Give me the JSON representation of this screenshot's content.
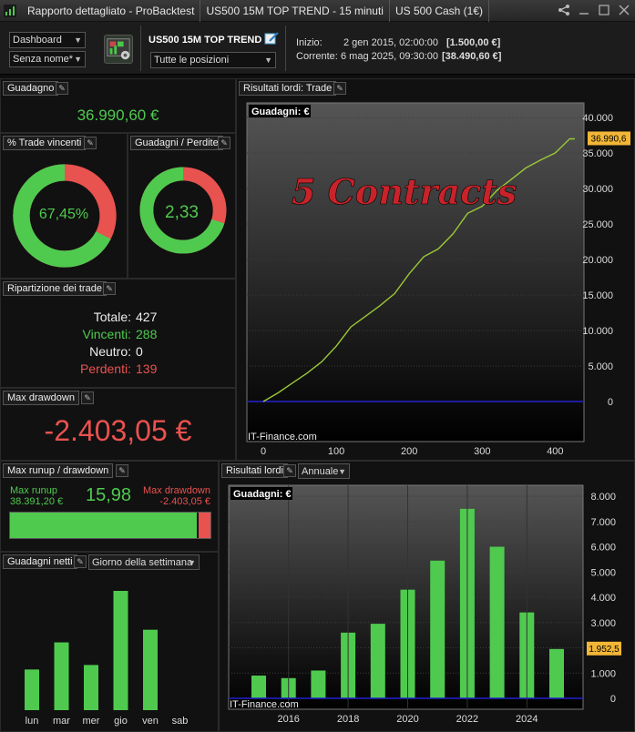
{
  "titlebar": {
    "tabs": [
      "Rapporto dettagliato - ProBacktest",
      "US500 15M TOP TREND - 15 minuti",
      "US 500 Cash (1€)"
    ]
  },
  "header": {
    "dashboard_select": "Dashboard",
    "name_select": "Senza nome*",
    "strategy_title": "US500 15M TOP TREND",
    "positions_select": "Tutte le posizioni",
    "start_label": "Inizio:",
    "start_date": "2 gen 2015, 02:00:00",
    "start_value": "[1.500,00 €]",
    "current_label": "Corrente:",
    "current_date": "6 mag 2025, 09:30:00",
    "current_value": "[38.490,60 €]"
  },
  "gain_panel": {
    "title": "Guadagno",
    "value": "36.990,60 €"
  },
  "win_panel": {
    "title": "% Trade vincenti",
    "value": "67,45%",
    "fraction": 0.6745
  },
  "gl_panel": {
    "title": "Guadagni / Perdite",
    "value": "2,33",
    "fraction": 0.7
  },
  "breakdown": {
    "title": "Ripartizione dei trade",
    "total_label": "Totale:",
    "total": "427",
    "win_label": "Vincenti:",
    "win": "288",
    "neutral_label": "Neutro:",
    "neutral": "0",
    "loss_label": "Perdenti:",
    "loss": "139"
  },
  "drawdown_panel": {
    "title": "Max drawdown",
    "value": "-2.403,05 €"
  },
  "runup_panel": {
    "title": "Max runup / drawdown",
    "runup_label": "Max runup",
    "runup_value": "38.391,20 €",
    "ratio": "15,98",
    "dd_label": "Max drawdown",
    "dd_value": "-2.403,05 €",
    "runup_fraction": 0.94
  },
  "weekday_panel": {
    "title": "Guadagni netti",
    "select": "Giorno della settimana"
  },
  "equity_panel": {
    "title": "Risultati lordi: Trade",
    "chart_label": "Guadagni: €",
    "annotation": "5 Contracts",
    "watermark": "IT-Finance.com",
    "last_value": "36.990,6"
  },
  "annual_panel": {
    "title": "Risultati lordi",
    "select": "Annuale",
    "chart_label": "Guadagni: €",
    "watermark": "IT-Finance.com",
    "last_value": "1.952,5"
  },
  "colors": {
    "green": "#4fca4f",
    "red": "#e8524f",
    "zero_line": "#2222cc"
  },
  "chart_data": [
    {
      "type": "line",
      "title": "Risultati lordi: Trade",
      "ylabel": "Guadagni: €",
      "xlim": [
        0,
        427
      ],
      "ylim": [
        -1000,
        41000
      ],
      "xticks": [
        0,
        100,
        200,
        300,
        400
      ],
      "yticks": [
        0,
        5000,
        10000,
        15000,
        20000,
        25000,
        30000,
        35000,
        40000
      ],
      "ytick_labels": [
        "0",
        "5.000",
        "10.000",
        "15.000",
        "20.000",
        "25.000",
        "30.000",
        "35.000",
        "40.000"
      ],
      "x": [
        0,
        20,
        40,
        60,
        80,
        100,
        120,
        140,
        160,
        180,
        200,
        220,
        240,
        260,
        280,
        300,
        320,
        340,
        360,
        380,
        400,
        420,
        427
      ],
      "y": [
        0,
        1200,
        2600,
        4000,
        5600,
        7800,
        10500,
        12000,
        13500,
        15200,
        18000,
        20400,
        21500,
        23600,
        26500,
        27500,
        29700,
        31300,
        32900,
        34000,
        35000,
        37000,
        36990.6
      ],
      "grid": true
    },
    {
      "type": "bar",
      "title": "Risultati lordi",
      "ylabel": "Guadagni: €",
      "categories": [
        "2015",
        "2016",
        "2017",
        "2018",
        "2019",
        "2020",
        "2021",
        "2022",
        "2023",
        "2024",
        "2025"
      ],
      "values": [
        900,
        800,
        1100,
        2600,
        2950,
        4300,
        5450,
        7500,
        6000,
        3400,
        1952.5
      ],
      "xtick_labels": [
        "2016",
        "2018",
        "2020",
        "2022",
        "2024"
      ],
      "yticks": [
        0,
        1000,
        2000,
        3000,
        4000,
        5000,
        6000,
        7000,
        8000
      ],
      "ytick_labels": [
        "0",
        "1.000",
        "2.000",
        "3.000",
        "4.000",
        "5.000",
        "6.000",
        "7.000",
        "8.000"
      ],
      "ylim": [
        -300,
        8300
      ],
      "grid": true
    },
    {
      "type": "bar",
      "title": "Guadagni netti",
      "categories": [
        "lun",
        "mar",
        "mer",
        "gio",
        "ven",
        "sab"
      ],
      "values": [
        4.5,
        7.5,
        5.0,
        13.2,
        8.9,
        0
      ],
      "grid": false
    }
  ]
}
